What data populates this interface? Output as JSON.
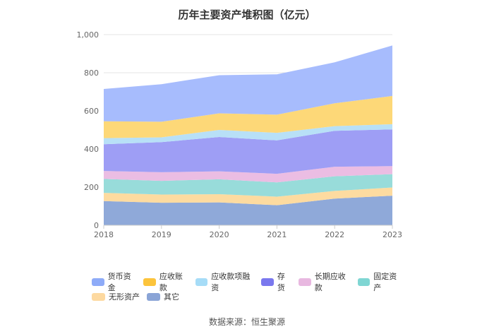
{
  "chart_data": {
    "type": "area",
    "stacked": true,
    "title": "历年主要资产堆积图（亿元）",
    "x": [
      "2018",
      "2019",
      "2020",
      "2021",
      "2022",
      "2023"
    ],
    "y_ticks": [
      "0",
      "200",
      "400",
      "600",
      "800",
      "1,000"
    ],
    "ylim": [
      0,
      1000
    ],
    "grid": true,
    "legend_position": "bottom",
    "series": [
      {
        "name": "其它",
        "color": "#8fa9d9",
        "values": [
          127,
          118,
          120,
          105,
          140,
          155
        ]
      },
      {
        "name": "无形资产",
        "color": "#fddba0",
        "values": [
          43,
          43,
          43,
          45,
          40,
          43
        ]
      },
      {
        "name": "固定资产",
        "color": "#98dcda",
        "values": [
          73,
          72,
          78,
          75,
          77,
          70
        ]
      },
      {
        "name": "长期应收款",
        "color": "#ebbde3",
        "values": [
          42,
          45,
          42,
          45,
          50,
          42
        ]
      },
      {
        "name": "存货",
        "color": "#9e9ef5",
        "values": [
          140,
          158,
          180,
          175,
          188,
          193
        ]
      },
      {
        "name": "应收款项融资",
        "color": "#b8e0f7",
        "values": [
          32,
          25,
          37,
          40,
          25,
          27
        ]
      },
      {
        "name": "应收账款",
        "color": "#fdd878",
        "values": [
          88,
          82,
          87,
          95,
          120,
          148
        ]
      },
      {
        "name": "货币资金",
        "color": "#a7bcfd",
        "values": [
          170,
          197,
          200,
          212,
          215,
          265
        ]
      }
    ]
  },
  "legend": {
    "items": [
      {
        "label": "货币资金",
        "color": "#8eabf8"
      },
      {
        "label": "应收账款",
        "color": "#fcc43c"
      },
      {
        "label": "应收款项融资",
        "color": "#a6dcf7"
      },
      {
        "label": "存货",
        "color": "#7a78ee"
      },
      {
        "label": "长期应收款",
        "color": "#e8b8e0"
      },
      {
        "label": "固定资产",
        "color": "#7fd6d3"
      },
      {
        "label": "无形资产",
        "color": "#fdd9a0"
      },
      {
        "label": "其它",
        "color": "#8aa4d6"
      }
    ]
  },
  "source": "数据来源：恒生聚源"
}
